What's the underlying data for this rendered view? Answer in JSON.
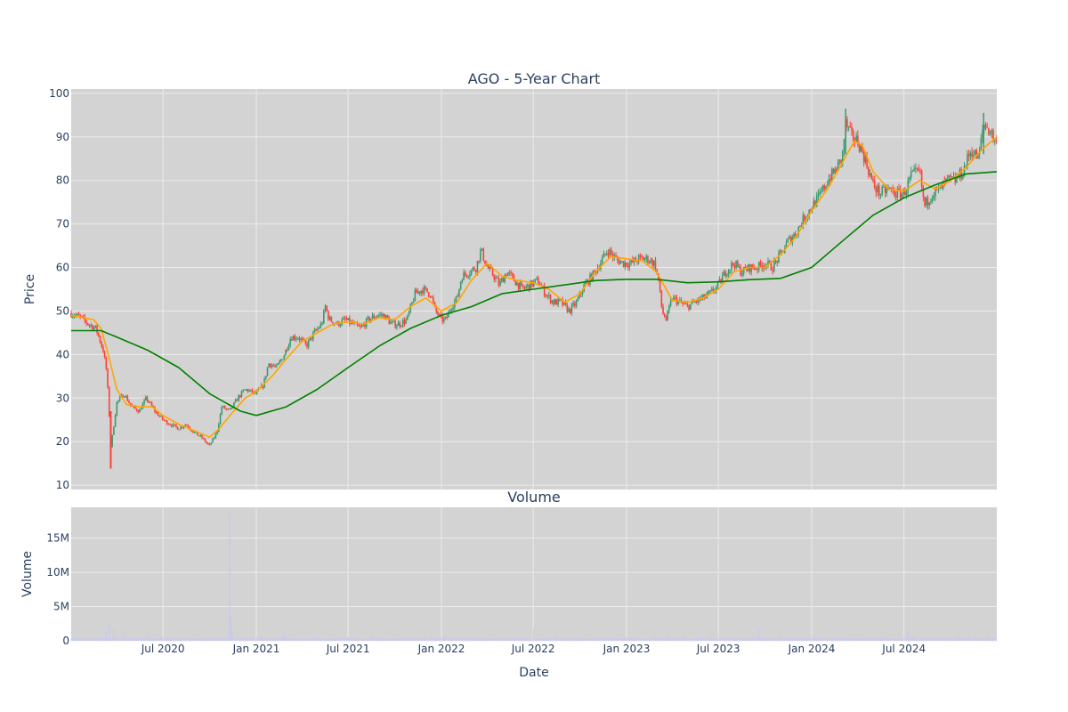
{
  "chart_data": [
    {
      "type": "candlestick",
      "title": "AGO - 5-Year Chart",
      "ylabel": "Price",
      "ylim": [
        9,
        101
      ],
      "y_ticks": [
        10,
        20,
        30,
        40,
        50,
        60,
        70,
        80,
        90,
        100
      ],
      "grid": true,
      "colors": {
        "up": "#3d9970",
        "down": "#ff4136",
        "ma_short": "#ffa500",
        "ma_long": "#008000",
        "plot_bg": "#d3d3d3",
        "grid": "#ebebeb"
      },
      "series": [
        {
          "kind": "ohlc",
          "points": [
            [
              "2020-01-02",
              49.5
            ],
            [
              "2020-01-20",
              48.5
            ],
            [
              "2020-02-05",
              47
            ],
            [
              "2020-02-20",
              46
            ],
            [
              "2020-03-05",
              41
            ],
            [
              "2020-03-12",
              36
            ],
            [
              "2020-03-17",
              26
            ],
            [
              "2020-03-20",
              19
            ],
            [
              "2020-03-24",
              22
            ],
            [
              "2020-04-01",
              29
            ],
            [
              "2020-04-15",
              31
            ],
            [
              "2020-04-30",
              28
            ],
            [
              "2020-05-15",
              27
            ],
            [
              "2020-05-29",
              30
            ],
            [
              "2020-06-15",
              27
            ],
            [
              "2020-07-01",
              25
            ],
            [
              "2020-07-15",
              24
            ],
            [
              "2020-08-01",
              23
            ],
            [
              "2020-08-15",
              24
            ],
            [
              "2020-09-01",
              22
            ],
            [
              "2020-09-15",
              21
            ],
            [
              "2020-09-30",
              19
            ],
            [
              "2020-10-15",
              22
            ],
            [
              "2020-10-25",
              28
            ],
            [
              "2020-11-10",
              27
            ],
            [
              "2020-11-25",
              30
            ],
            [
              "2020-12-10",
              32
            ],
            [
              "2020-12-31",
              31
            ],
            [
              "2021-01-15",
              33
            ],
            [
              "2021-01-25",
              38
            ],
            [
              "2021-02-10",
              37
            ],
            [
              "2021-02-25",
              40
            ],
            [
              "2021-03-10",
              44
            ],
            [
              "2021-03-25",
              44
            ],
            [
              "2021-04-10",
              42
            ],
            [
              "2021-04-25",
              45
            ],
            [
              "2021-05-10",
              47
            ],
            [
              "2021-05-17",
              51
            ],
            [
              "2021-05-25",
              48
            ],
            [
              "2021-06-10",
              47
            ],
            [
              "2021-06-25",
              48
            ],
            [
              "2021-07-10",
              47
            ],
            [
              "2021-07-25",
              46
            ],
            [
              "2021-08-10",
              48
            ],
            [
              "2021-08-25",
              49
            ],
            [
              "2021-09-10",
              49
            ],
            [
              "2021-09-25",
              47
            ],
            [
              "2021-10-10",
              47
            ],
            [
              "2021-10-25",
              48
            ],
            [
              "2021-11-10",
              54
            ],
            [
              "2021-11-25",
              55
            ],
            [
              "2021-12-10",
              54
            ],
            [
              "2021-12-20",
              50
            ],
            [
              "2022-01-01",
              48
            ],
            [
              "2022-01-10",
              48
            ],
            [
              "2022-01-20",
              51
            ],
            [
              "2022-02-01",
              53
            ],
            [
              "2022-02-10",
              58
            ],
            [
              "2022-02-25",
              59
            ],
            [
              "2022-03-10",
              60
            ],
            [
              "2022-03-20",
              64
            ],
            [
              "2022-04-01",
              60
            ],
            [
              "2022-04-15",
              58
            ],
            [
              "2022-04-25",
              56
            ],
            [
              "2022-05-10",
              59
            ],
            [
              "2022-05-25",
              57
            ],
            [
              "2022-06-10",
              55
            ],
            [
              "2022-06-25",
              56
            ],
            [
              "2022-07-10",
              57
            ],
            [
              "2022-07-25",
              54
            ],
            [
              "2022-08-10",
              52
            ],
            [
              "2022-08-25",
              52
            ],
            [
              "2022-09-10",
              50
            ],
            [
              "2022-09-25",
              52
            ],
            [
              "2022-10-10",
              56
            ],
            [
              "2022-10-25",
              58
            ],
            [
              "2022-11-10",
              61
            ],
            [
              "2022-11-25",
              64
            ],
            [
              "2022-12-10",
              62
            ],
            [
              "2022-12-25",
              61
            ],
            [
              "2023-01-10",
              61
            ],
            [
              "2023-01-25",
              62
            ],
            [
              "2023-02-10",
              62
            ],
            [
              "2023-02-25",
              61
            ],
            [
              "2023-03-05",
              57
            ],
            [
              "2023-03-12",
              50
            ],
            [
              "2023-03-20",
              48
            ],
            [
              "2023-04-01",
              53
            ],
            [
              "2023-04-15",
              52
            ],
            [
              "2023-05-01",
              51
            ],
            [
              "2023-05-15",
              52
            ],
            [
              "2023-06-01",
              53
            ],
            [
              "2023-06-15",
              54
            ],
            [
              "2023-07-01",
              56
            ],
            [
              "2023-07-15",
              59
            ],
            [
              "2023-08-01",
              61
            ],
            [
              "2023-08-15",
              59
            ],
            [
              "2023-09-01",
              60
            ],
            [
              "2023-09-15",
              60
            ],
            [
              "2023-10-01",
              61
            ],
            [
              "2023-10-15",
              60
            ],
            [
              "2023-11-01",
              63
            ],
            [
              "2023-11-15",
              66
            ],
            [
              "2023-12-01",
              68
            ],
            [
              "2023-12-15",
              71
            ],
            [
              "2024-01-01",
              74
            ],
            [
              "2024-01-15",
              76
            ],
            [
              "2024-02-01",
              80
            ],
            [
              "2024-02-15",
              82
            ],
            [
              "2024-03-01",
              85
            ],
            [
              "2024-03-08",
              93
            ],
            [
              "2024-03-20",
              90
            ],
            [
              "2024-04-01",
              89
            ],
            [
              "2024-04-15",
              85
            ],
            [
              "2024-05-01",
              79
            ],
            [
              "2024-05-15",
              77
            ],
            [
              "2024-06-01",
              78
            ],
            [
              "2024-06-15",
              77
            ],
            [
              "2024-07-01",
              77
            ],
            [
              "2024-07-15",
              81
            ],
            [
              "2024-08-01",
              82
            ],
            [
              "2024-08-10",
              74
            ],
            [
              "2024-08-25",
              77
            ],
            [
              "2024-09-10",
              78
            ],
            [
              "2024-09-25",
              80
            ],
            [
              "2024-10-10",
              80
            ],
            [
              "2024-10-25",
              82
            ],
            [
              "2024-11-10",
              87
            ],
            [
              "2024-11-25",
              85
            ],
            [
              "2024-12-05",
              93
            ],
            [
              "2024-12-20",
              91
            ],
            [
              "2024-12-31",
              88
            ]
          ]
        },
        {
          "kind": "line",
          "color": "#ffa500",
          "points": [
            [
              "2020-01-02",
              49
            ],
            [
              "2020-02-15",
              48
            ],
            [
              "2020-03-01",
              46
            ],
            [
              "2020-03-15",
              40
            ],
            [
              "2020-04-01",
              32
            ],
            [
              "2020-04-20",
              28.5
            ],
            [
              "2020-05-15",
              28
            ],
            [
              "2020-06-10",
              28
            ],
            [
              "2020-07-01",
              26
            ],
            [
              "2020-08-01",
              24
            ],
            [
              "2020-09-01",
              22.5
            ],
            [
              "2020-10-01",
              21
            ],
            [
              "2020-10-20",
              23
            ],
            [
              "2020-11-10",
              26
            ],
            [
              "2020-12-10",
              30
            ],
            [
              "2021-01-01",
              31.5
            ],
            [
              "2021-02-01",
              35
            ],
            [
              "2021-03-01",
              39
            ],
            [
              "2021-04-01",
              43
            ],
            [
              "2021-05-01",
              45
            ],
            [
              "2021-06-01",
              47
            ],
            [
              "2021-07-01",
              47.5
            ],
            [
              "2021-08-01",
              47
            ],
            [
              "2021-09-01",
              48.5
            ],
            [
              "2021-10-01",
              48
            ],
            [
              "2021-11-01",
              51
            ],
            [
              "2021-12-01",
              53
            ],
            [
              "2022-01-01",
              50
            ],
            [
              "2022-02-01",
              52
            ],
            [
              "2022-03-01",
              57
            ],
            [
              "2022-04-01",
              61
            ],
            [
              "2022-05-01",
              58
            ],
            [
              "2022-06-01",
              57
            ],
            [
              "2022-07-01",
              56.5
            ],
            [
              "2022-08-01",
              55
            ],
            [
              "2022-09-01",
              52
            ],
            [
              "2022-10-01",
              54
            ],
            [
              "2022-11-01",
              59
            ],
            [
              "2022-12-01",
              62.5
            ],
            [
              "2023-01-01",
              62
            ],
            [
              "2023-02-01",
              61.5
            ],
            [
              "2023-03-01",
              59
            ],
            [
              "2023-04-01",
              52.5
            ],
            [
              "2023-05-01",
              52
            ],
            [
              "2023-06-01",
              53
            ],
            [
              "2023-07-01",
              55
            ],
            [
              "2023-08-01",
              59
            ],
            [
              "2023-09-01",
              60
            ],
            [
              "2023-10-01",
              60
            ],
            [
              "2023-11-01",
              63
            ],
            [
              "2023-12-01",
              67
            ],
            [
              "2024-01-01",
              73
            ],
            [
              "2024-02-01",
              78
            ],
            [
              "2024-03-01",
              84
            ],
            [
              "2024-03-25",
              89
            ],
            [
              "2024-04-10",
              88
            ],
            [
              "2024-05-01",
              82
            ],
            [
              "2024-06-01",
              78
            ],
            [
              "2024-07-01",
              77.5
            ],
            [
              "2024-08-01",
              80
            ],
            [
              "2024-09-01",
              78
            ],
            [
              "2024-10-01",
              80
            ],
            [
              "2024-11-01",
              83
            ],
            [
              "2024-12-01",
              87
            ],
            [
              "2024-12-31",
              90
            ]
          ]
        },
        {
          "kind": "line",
          "color": "#008000",
          "points": [
            [
              "2020-01-02",
              45.5
            ],
            [
              "2020-03-01",
              45.5
            ],
            [
              "2020-04-01",
              44
            ],
            [
              "2020-06-01",
              41
            ],
            [
              "2020-08-01",
              37
            ],
            [
              "2020-10-01",
              31
            ],
            [
              "2020-12-01",
              27
            ],
            [
              "2021-01-01",
              26
            ],
            [
              "2021-03-01",
              28
            ],
            [
              "2021-05-01",
              32
            ],
            [
              "2021-07-01",
              37
            ],
            [
              "2021-09-01",
              42
            ],
            [
              "2021-11-01",
              46
            ],
            [
              "2022-01-01",
              49
            ],
            [
              "2022-03-01",
              51
            ],
            [
              "2022-05-01",
              54
            ],
            [
              "2022-07-01",
              55
            ],
            [
              "2022-09-01",
              56
            ],
            [
              "2022-11-01",
              57
            ],
            [
              "2023-01-01",
              57.3
            ],
            [
              "2023-03-01",
              57.3
            ],
            [
              "2023-05-01",
              56.5
            ],
            [
              "2023-07-01",
              56.7
            ],
            [
              "2023-09-01",
              57.2
            ],
            [
              "2023-11-01",
              57.5
            ],
            [
              "2024-01-01",
              60
            ],
            [
              "2024-03-01",
              66
            ],
            [
              "2024-05-01",
              72
            ],
            [
              "2024-07-01",
              76
            ],
            [
              "2024-09-01",
              79
            ],
            [
              "2024-11-01",
              81.5
            ],
            [
              "2024-12-31",
              82
            ]
          ]
        }
      ]
    },
    {
      "type": "bar",
      "title": "Volume",
      "xlabel": "Date",
      "ylabel": "Volume",
      "ylim": [
        0,
        19500000
      ],
      "y_ticks": [
        0,
        5000000,
        10000000,
        15000000
      ],
      "y_tick_labels": [
        "0",
        "5M",
        "10M",
        "15M"
      ],
      "x_ticks": [
        "2020-07-01",
        "2021-01-01",
        "2021-07-01",
        "2022-01-01",
        "2022-07-01",
        "2023-01-01",
        "2023-07-01",
        "2024-01-01",
        "2024-07-01"
      ],
      "x_tick_labels": [
        "Jul 2020",
        "Jan 2021",
        "Jul 2021",
        "Jan 2022",
        "Jul 2022",
        "Jan 2023",
        "Jul 2023",
        "Jan 2024",
        "Jul 2024"
      ],
      "x_range": [
        "2020-01-02",
        "2024-12-31"
      ],
      "bar_color": "#c8c8f0",
      "baseline": 400000,
      "spikes": [
        [
          "2020-03-10",
          1500000
        ],
        [
          "2020-03-18",
          2500000
        ],
        [
          "2020-03-25",
          1800000
        ],
        [
          "2020-04-15",
          1300000
        ],
        [
          "2020-06-01",
          1200000
        ],
        [
          "2020-11-09",
          18700000
        ],
        [
          "2020-11-11",
          3500000
        ],
        [
          "2020-11-16",
          1400000
        ],
        [
          "2021-02-25",
          1300000
        ],
        [
          "2022-07-01",
          1800000
        ],
        [
          "2023-09-20",
          1800000
        ],
        [
          "2024-07-10",
          1300000
        ]
      ]
    }
  ]
}
